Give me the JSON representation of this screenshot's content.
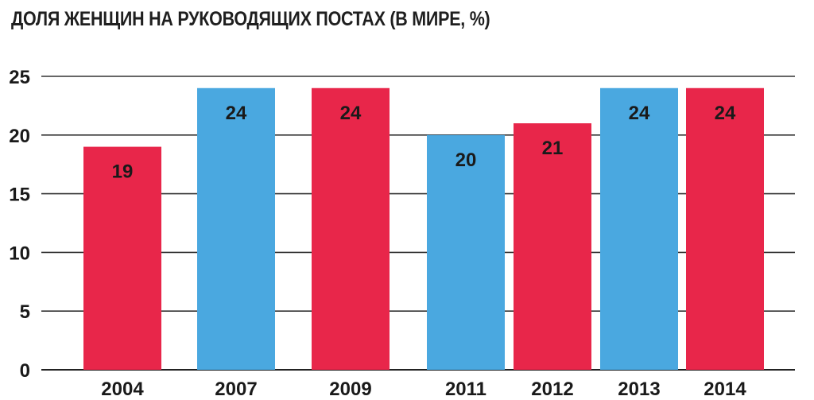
{
  "chart_data": {
    "type": "bar",
    "title": "ДОЛЯ ЖЕНЩИН НА РУКОВОДЯЩИХ ПОСТАХ (В МИРЕ, %)",
    "categories": [
      "2004",
      "2007",
      "2009",
      "2011",
      "2012",
      "2013",
      "2014"
    ],
    "values": [
      19,
      24,
      24,
      20,
      21,
      24,
      24
    ],
    "value_labels": [
      "19",
      "24",
      "24",
      "20",
      "21",
      "24",
      "24"
    ],
    "bar_colors": [
      "#e8264a",
      "#4aa8e0",
      "#e8264a",
      "#4aa8e0",
      "#e8264a",
      "#4aa8e0",
      "#e8264a"
    ],
    "ylim": [
      0,
      25
    ],
    "yticks": [
      0,
      5,
      10,
      15,
      20,
      25
    ],
    "ytick_labels": [
      "0",
      "5",
      "10",
      "15",
      "20",
      "25"
    ],
    "grid": true,
    "legend": "none"
  }
}
